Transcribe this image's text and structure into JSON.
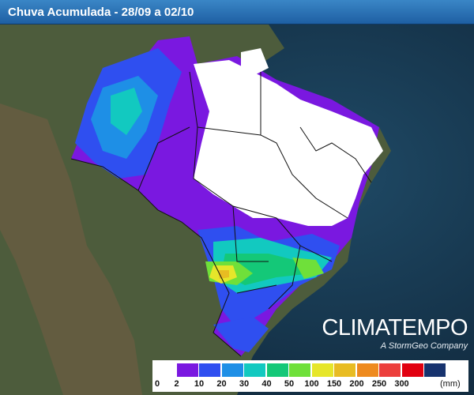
{
  "title": "Chuva Acumulada - 28/09 a 02/10",
  "brand": {
    "logo": "CLIMATEMPO",
    "subtitle": "A StormGeo Company"
  },
  "legend": {
    "unit": "(mm)",
    "ticks": [
      "0",
      "2",
      "10",
      "20",
      "30",
      "40",
      "50",
      "100",
      "150",
      "200",
      "250",
      "300"
    ],
    "colors": [
      "#ffffff",
      "#7a18e0",
      "#2f4ff0",
      "#1e8fe6",
      "#12c9c0",
      "#14c878",
      "#6fe03a",
      "#e6e62a",
      "#e8bc22",
      "#ee8a1e",
      "#ec3f3c",
      "#e10010",
      "#17336e"
    ]
  },
  "colors": {
    "ocean": "#1a3a52",
    "land": "#4a5a3a",
    "border": "#111111"
  }
}
